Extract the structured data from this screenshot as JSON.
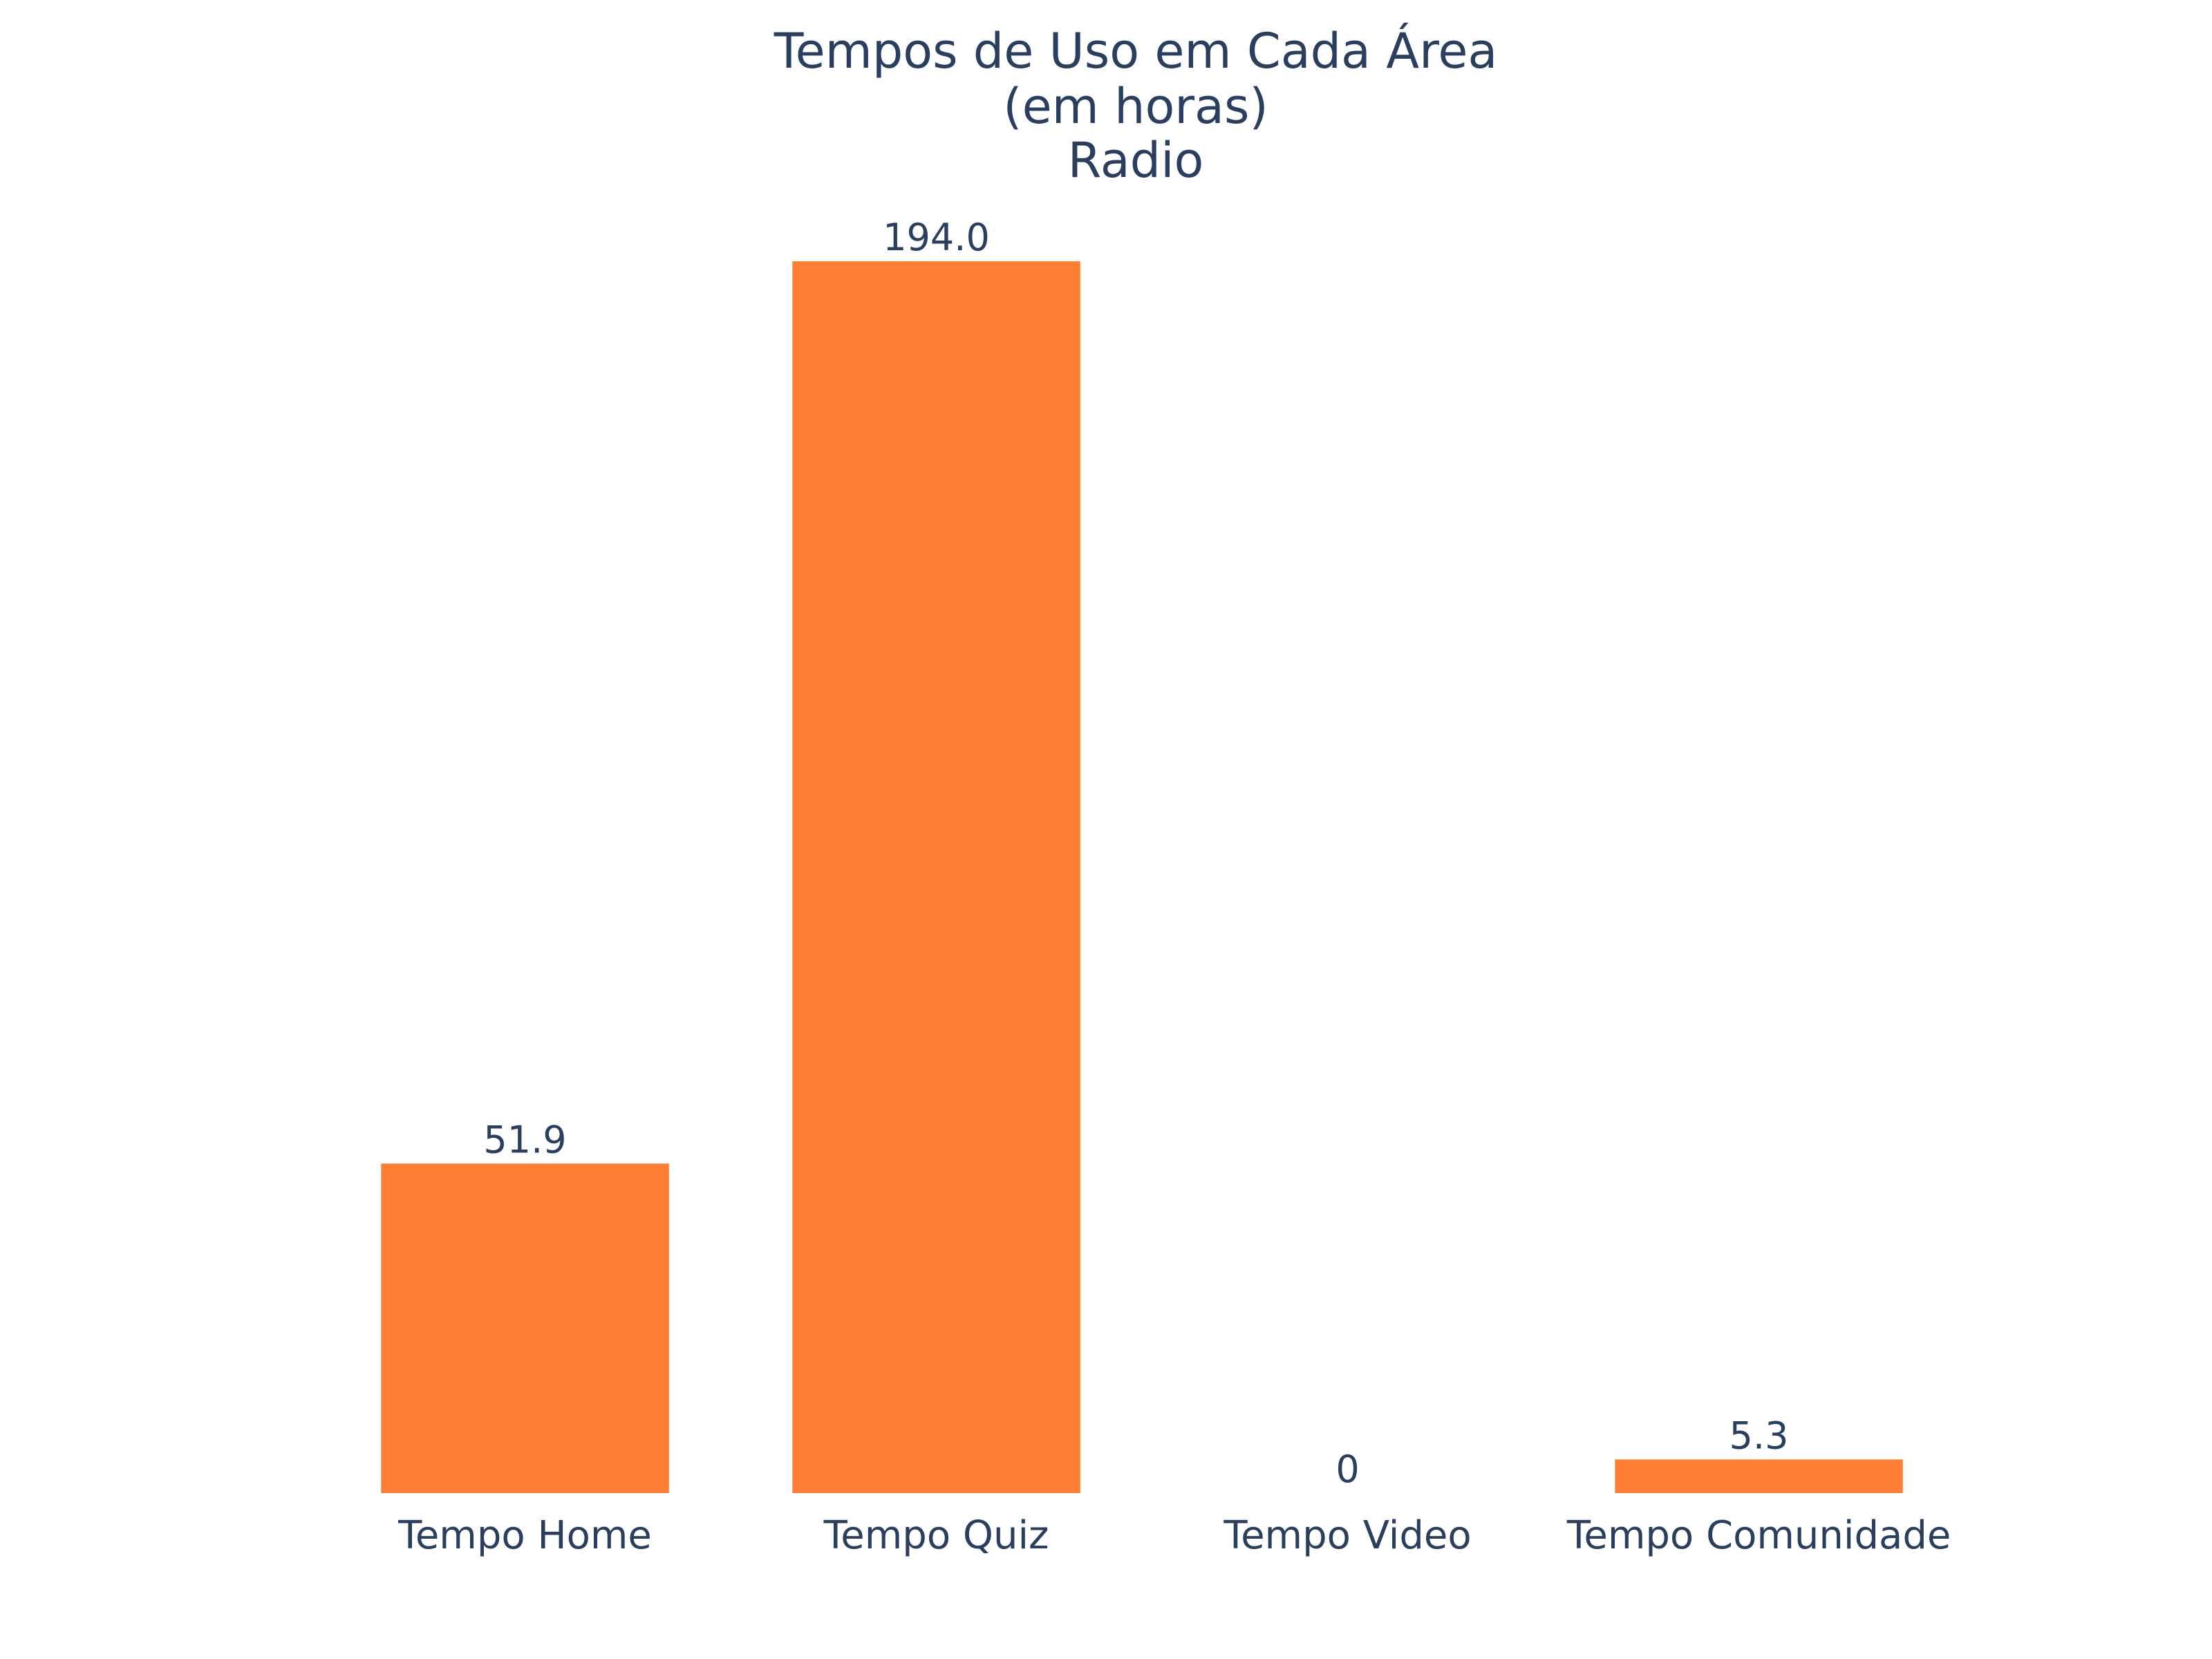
{
  "chart_data": {
    "type": "bar",
    "title_lines": [
      "Tempos de Uso em Cada Área",
      "(em horas)",
      "Radio"
    ],
    "categories": [
      "Tempo Home",
      "Tempo Quiz",
      "Tempo Video",
      "Tempo Comunidade"
    ],
    "values": [
      51.9,
      194.0,
      0,
      5.3
    ],
    "value_labels": [
      "51.9",
      "194.0",
      "0",
      "5.3"
    ],
    "xlabel": "",
    "ylabel": "",
    "ylim": [
      0,
      200
    ],
    "grid": false,
    "legend": "none",
    "colors": {
      "bar": "#fe7f34",
      "text": "#2a3f5f",
      "background": "#ffffff"
    }
  }
}
